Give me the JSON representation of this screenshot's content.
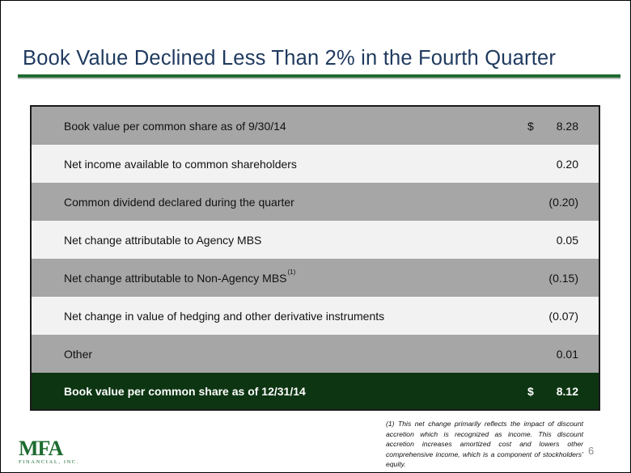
{
  "slide": {
    "title": "Book Value Declined Less Than 2% in the Fourth Quarter",
    "page_number": "6"
  },
  "table": {
    "rows": [
      {
        "label": "Book value per common share as of 9/30/14",
        "dollar": "$",
        "value": "8.28"
      },
      {
        "label": "Net income available to common shareholders",
        "dollar": "",
        "value": "0.20"
      },
      {
        "label": "Common dividend declared during the quarter",
        "dollar": "",
        "value": "(0.20)"
      },
      {
        "label": "Net change attributable to Agency MBS",
        "dollar": "",
        "value": "0.05"
      },
      {
        "label": "Net change attributable to Non-Agency MBS",
        "footnote_marker": "(1)",
        "dollar": "",
        "value": "(0.15)"
      },
      {
        "label": "Net change in value of hedging and other derivative instruments",
        "dollar": "",
        "value": "(0.07)"
      },
      {
        "label": "Other",
        "dollar": "",
        "value": "0.01"
      }
    ],
    "total": {
      "label": "Book value per common share as of 12/31/14",
      "dollar": "$",
      "value": "8.12"
    }
  },
  "footnote": "(1) This net change primarily reflects the impact of discount accretion which is recognized as income. This discount accretion increases amortized cost and lowers other comprehensive income, which is a component of stockholders’ equity.",
  "logo": {
    "mark": "MFA",
    "subtitle": "FINANCIAL, INC."
  },
  "colors": {
    "title": "#1f3a5f",
    "accent_green": "#1e6b30",
    "total_row": "#0d3512",
    "dark_row": "#a6a6a6",
    "light_row": "#f2f2f2"
  }
}
